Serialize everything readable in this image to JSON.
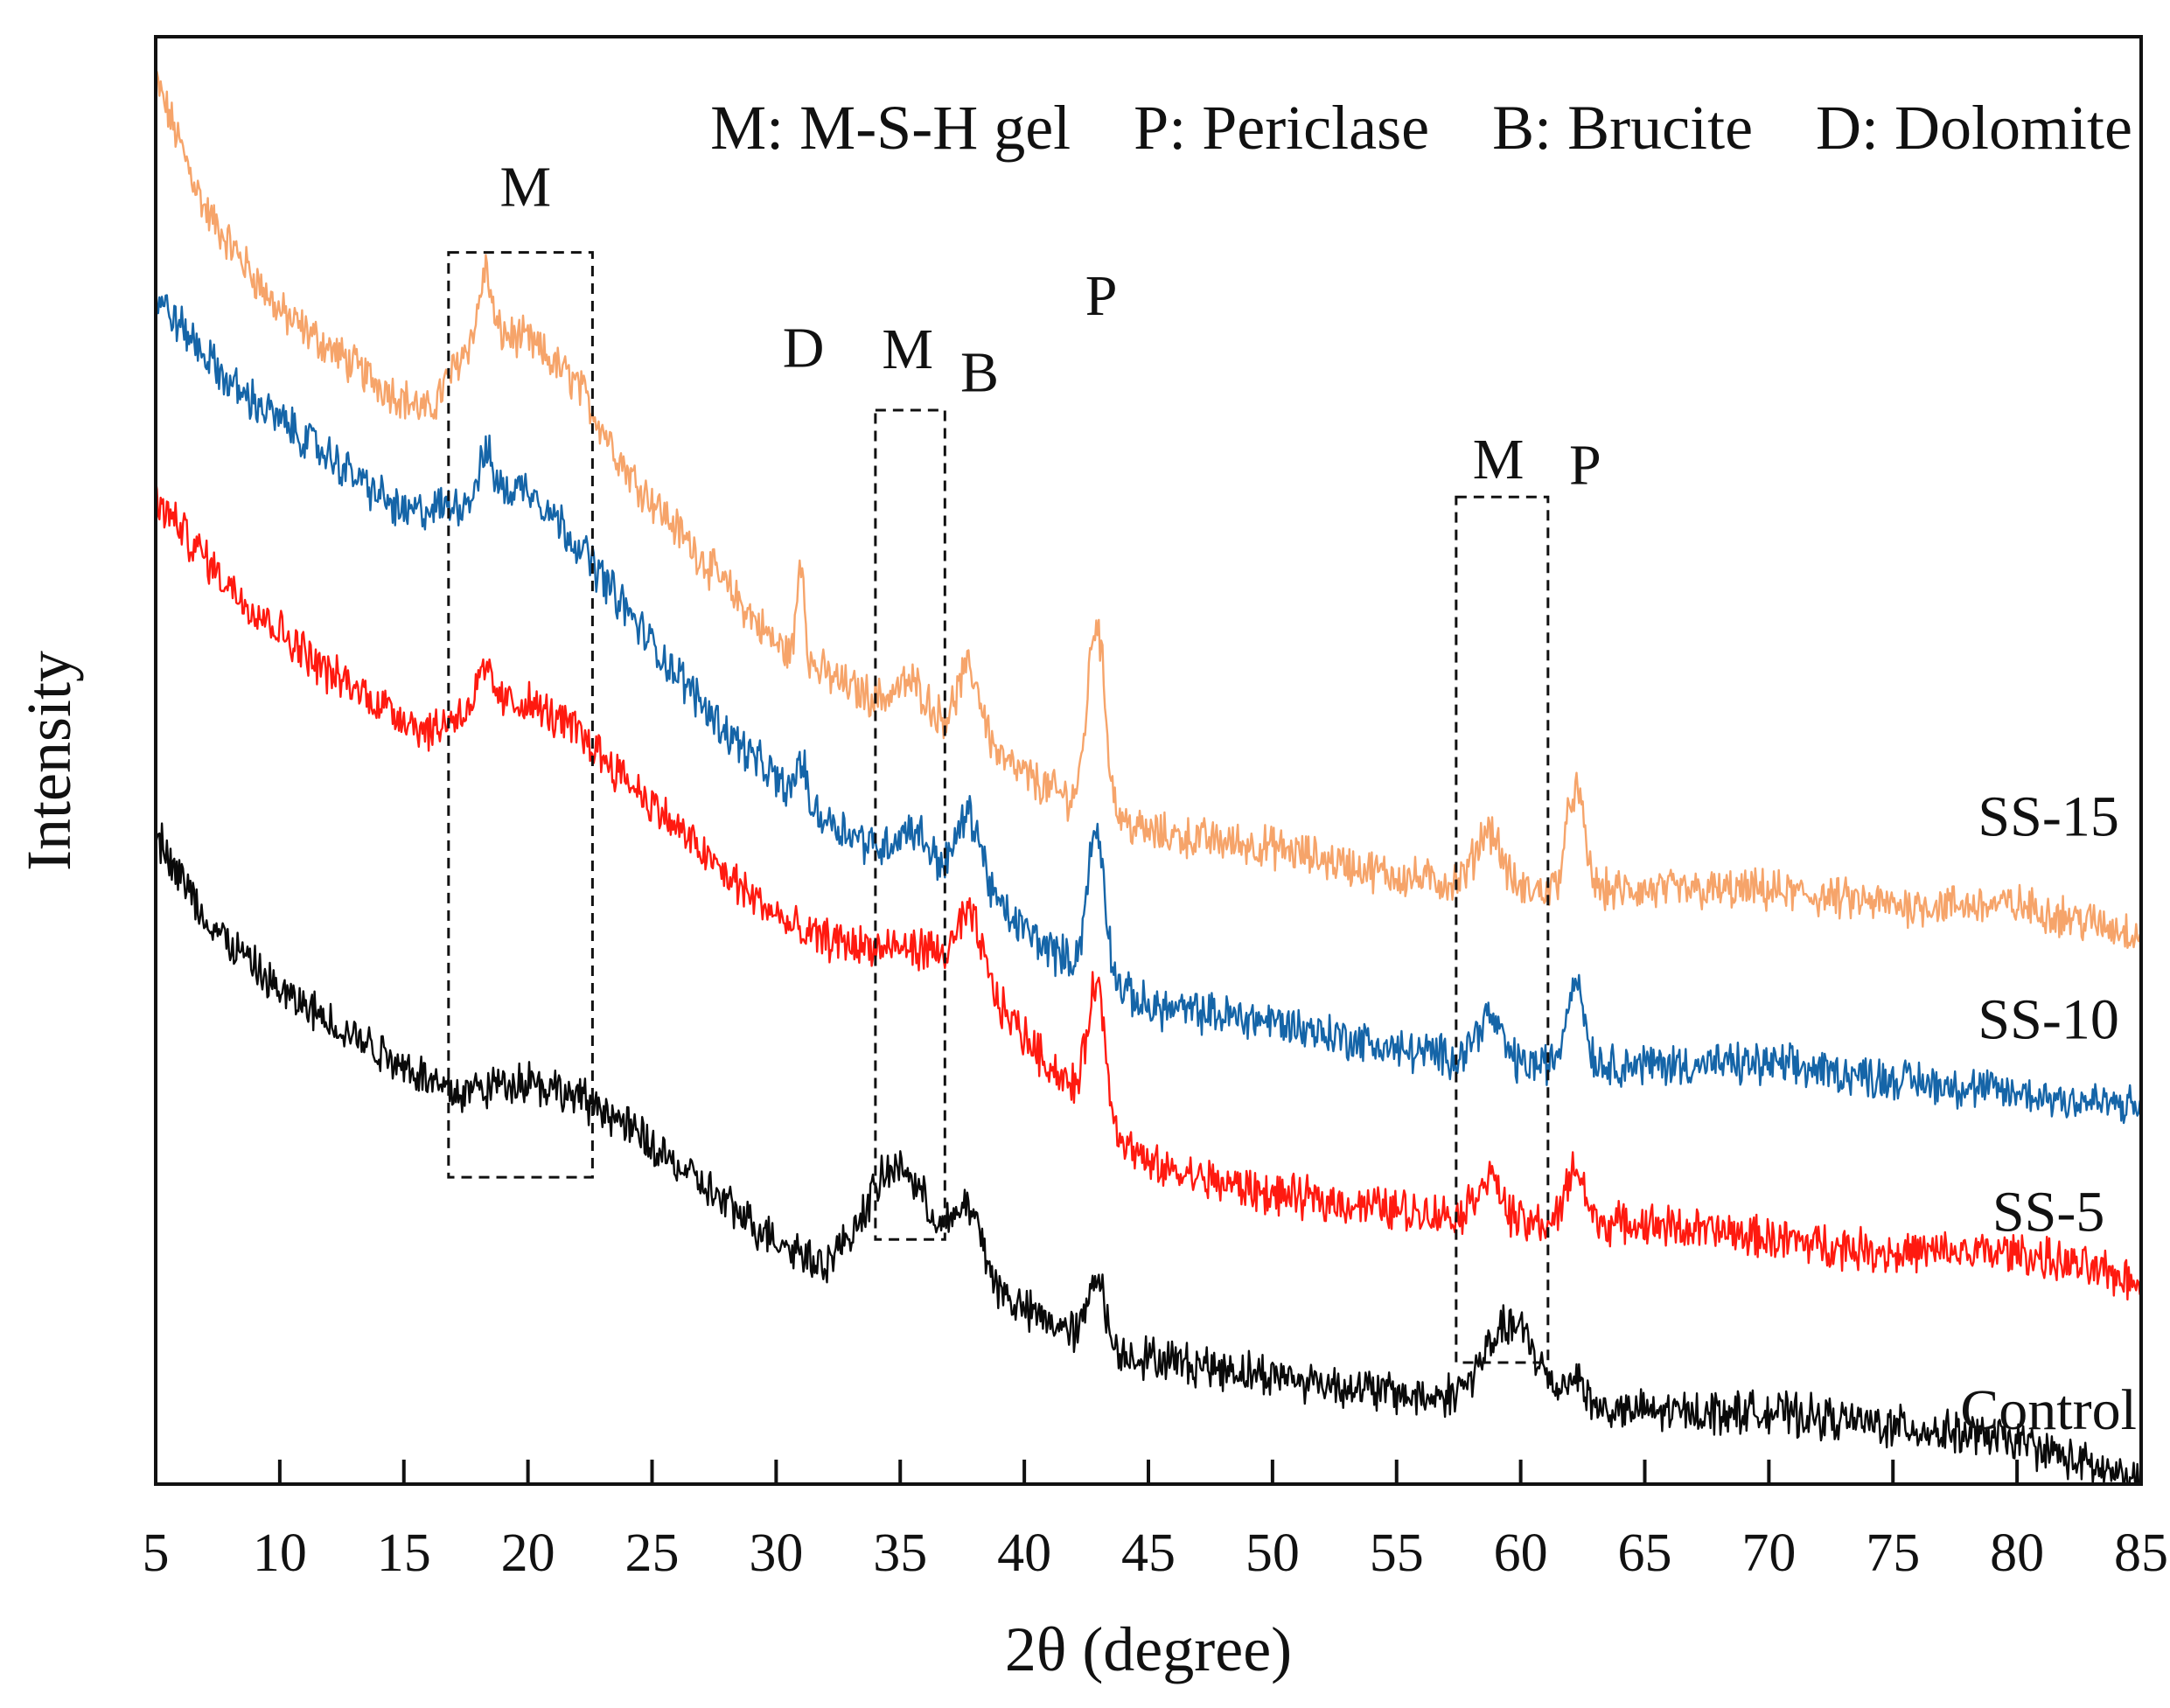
{
  "chart_data": {
    "type": "line",
    "title": "",
    "xlabel": "2θ (degree)",
    "ylabel": "Intensity",
    "xlim": [
      5,
      85
    ],
    "xticks": [
      "5",
      "10",
      "15",
      "20",
      "25",
      "30",
      "35",
      "40",
      "45",
      "50",
      "55",
      "60",
      "65",
      "70",
      "75",
      "80",
      "85"
    ],
    "y_ticks_shown": false,
    "grid": false,
    "legend": "M: M-S-H gel    P: Periclase    B: Brucite    D: Dolomite",
    "series": [
      {
        "name": "SS-15",
        "color": "#F6A46A",
        "base": [
          [
            5,
            0.97
          ],
          [
            7,
            0.88
          ],
          [
            10,
            0.81
          ],
          [
            14,
            0.76
          ],
          [
            16,
            0.74
          ],
          [
            18,
            0.8
          ],
          [
            20,
            0.79
          ],
          [
            22,
            0.76
          ],
          [
            24,
            0.7
          ],
          [
            27,
            0.64
          ],
          [
            30,
            0.58
          ],
          [
            33,
            0.55
          ],
          [
            36,
            0.53
          ],
          [
            38,
            0.51
          ],
          [
            41,
            0.48
          ],
          [
            45,
            0.45
          ],
          [
            50,
            0.44
          ],
          [
            55,
            0.42
          ],
          [
            60,
            0.41
          ],
          [
            65,
            0.41
          ],
          [
            70,
            0.41
          ],
          [
            75,
            0.4
          ],
          [
            80,
            0.4
          ],
          [
            85,
            0.38
          ]
        ],
        "peaks": [
          [
            18.3,
            0.04,
            0.2
          ],
          [
            31,
            0.07,
            0.15
          ],
          [
            35.5,
            0.02,
            0.6
          ],
          [
            37.8,
            0.05,
            0.5
          ],
          [
            42.9,
            0.13,
            0.35
          ],
          [
            58.7,
            0.04,
            0.5
          ],
          [
            62.2,
            0.07,
            0.35
          ]
        ]
      },
      {
        "name": "SS-10",
        "color": "#1565A8",
        "base": [
          [
            5,
            0.82
          ],
          [
            8,
            0.76
          ],
          [
            12,
            0.71
          ],
          [
            15,
            0.67
          ],
          [
            18,
            0.68
          ],
          [
            20,
            0.69
          ],
          [
            22,
            0.65
          ],
          [
            25,
            0.58
          ],
          [
            28,
            0.52
          ],
          [
            31,
            0.47
          ],
          [
            34,
            0.44
          ],
          [
            36,
            0.43
          ],
          [
            38,
            0.41
          ],
          [
            41,
            0.37
          ],
          [
            45,
            0.33
          ],
          [
            50,
            0.32
          ],
          [
            55,
            0.3
          ],
          [
            60,
            0.29
          ],
          [
            65,
            0.29
          ],
          [
            70,
            0.29
          ],
          [
            75,
            0.28
          ],
          [
            80,
            0.27
          ],
          [
            85,
            0.26
          ]
        ],
        "peaks": [
          [
            18.3,
            0.03,
            0.3
          ],
          [
            31,
            0.03,
            0.2
          ],
          [
            35.5,
            0.02,
            0.6
          ],
          [
            37.8,
            0.05,
            0.5
          ],
          [
            42.9,
            0.1,
            0.35
          ],
          [
            58.7,
            0.03,
            0.5
          ],
          [
            62.2,
            0.06,
            0.35
          ]
        ]
      },
      {
        "name": "SS-5",
        "color": "#FF1A10",
        "base": [
          [
            5,
            0.68
          ],
          [
            8,
            0.62
          ],
          [
            12,
            0.56
          ],
          [
            16,
            0.52
          ],
          [
            18,
            0.54
          ],
          [
            20,
            0.54
          ],
          [
            22,
            0.52
          ],
          [
            25,
            0.47
          ],
          [
            28,
            0.42
          ],
          [
            31,
            0.38
          ],
          [
            34,
            0.37
          ],
          [
            36,
            0.37
          ],
          [
            38,
            0.35
          ],
          [
            41,
            0.29
          ],
          [
            45,
            0.22
          ],
          [
            50,
            0.2
          ],
          [
            55,
            0.19
          ],
          [
            60,
            0.18
          ],
          [
            65,
            0.18
          ],
          [
            70,
            0.17
          ],
          [
            75,
            0.16
          ],
          [
            80,
            0.16
          ],
          [
            85,
            0.14
          ]
        ],
        "peaks": [
          [
            18.3,
            0.02,
            0.3
          ],
          [
            37.8,
            0.04,
            0.5
          ],
          [
            42.9,
            0.09,
            0.35
          ],
          [
            58.7,
            0.03,
            0.5
          ],
          [
            62.2,
            0.04,
            0.35
          ]
        ]
      },
      {
        "name": "Control",
        "color": "#0A0A0A",
        "base": [
          [
            5,
            0.45
          ],
          [
            7,
            0.39
          ],
          [
            10,
            0.34
          ],
          [
            14,
            0.3
          ],
          [
            17,
            0.27
          ],
          [
            20,
            0.28
          ],
          [
            23,
            0.26
          ],
          [
            26,
            0.22
          ],
          [
            29,
            0.18
          ],
          [
            32,
            0.15
          ],
          [
            35,
            0.17
          ],
          [
            37,
            0.16
          ],
          [
            40,
            0.12
          ],
          [
            44,
            0.09
          ],
          [
            48,
            0.08
          ],
          [
            52,
            0.07
          ],
          [
            56,
            0.06
          ],
          [
            60,
            0.06
          ],
          [
            64,
            0.05
          ],
          [
            70,
            0.05
          ],
          [
            75,
            0.04
          ],
          [
            80,
            0.03
          ],
          [
            85,
            0.0
          ]
        ],
        "peaks": [
          [
            34.8,
            0.05,
            1.2
          ],
          [
            37.8,
            0.04,
            0.5
          ],
          [
            42.9,
            0.05,
            0.3
          ],
          [
            59.6,
            0.05,
            1.0
          ],
          [
            62.2,
            0.02,
            0.35
          ]
        ]
      }
    ],
    "series_labels": [
      {
        "text": "SS-15",
        "x": 80,
        "y": 0.448
      },
      {
        "text": "SS-10",
        "x": 80,
        "y": 0.308
      },
      {
        "text": "SS-5",
        "x": 80,
        "y": 0.175
      },
      {
        "text": "Control",
        "x": 80,
        "y": 0.038
      }
    ],
    "peak_labels": [
      {
        "text": "M",
        "x": 19.9,
        "y": 0.883
      },
      {
        "text": "D",
        "x": 31.1,
        "y": 0.772
      },
      {
        "text": "M",
        "x": 35.3,
        "y": 0.771
      },
      {
        "text": "B",
        "x": 38.2,
        "y": 0.755
      },
      {
        "text": "P",
        "x": 43.1,
        "y": 0.808
      },
      {
        "text": "M",
        "x": 59.1,
        "y": 0.695
      },
      {
        "text": "P",
        "x": 62.6,
        "y": 0.691
      }
    ],
    "annotation_boxes": [
      {
        "name": "M-box-1",
        "x0": 16.8,
        "x1": 22.6,
        "y0": 0.212,
        "y1": 0.851
      },
      {
        "name": "M-box-2",
        "x0": 34.0,
        "x1": 36.8,
        "y0": 0.169,
        "y1": 0.742
      },
      {
        "name": "M-box-3",
        "x0": 57.4,
        "x1": 61.1,
        "y0": 0.084,
        "y1": 0.682
      }
    ]
  }
}
